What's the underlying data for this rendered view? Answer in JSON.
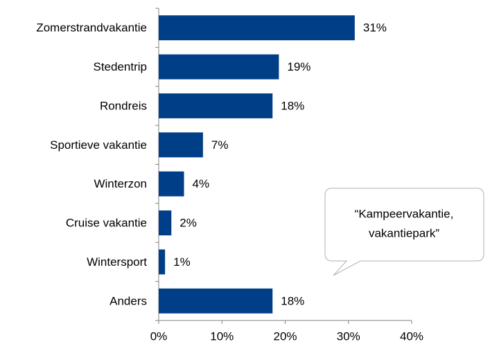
{
  "chart_data": {
    "type": "bar",
    "orientation": "horizontal",
    "categories": [
      "Zomerstrandvakantie",
      "Stedentrip",
      "Rondreis",
      "Sportieve vakantie",
      "Winterzon",
      "Cruise vakantie",
      "Wintersport",
      "Anders"
    ],
    "values": [
      31,
      19,
      18,
      7,
      4,
      2,
      1,
      18
    ],
    "value_labels": [
      "31%",
      "19%",
      "18%",
      "7%",
      "4%",
      "2%",
      "1%",
      "18%"
    ],
    "color": "#003f87",
    "xlim": [
      0,
      40
    ],
    "xticks": [
      {
        "value": 0,
        "label": "0%"
      },
      {
        "value": 10,
        "label": "10%"
      },
      {
        "value": 20,
        "label": "20%"
      },
      {
        "value": 30,
        "label": "30%"
      },
      {
        "value": 40,
        "label": "40%"
      }
    ],
    "grid": false,
    "annotation": [
      "“Kampeervakantie,",
      "vakantiepark”"
    ]
  }
}
